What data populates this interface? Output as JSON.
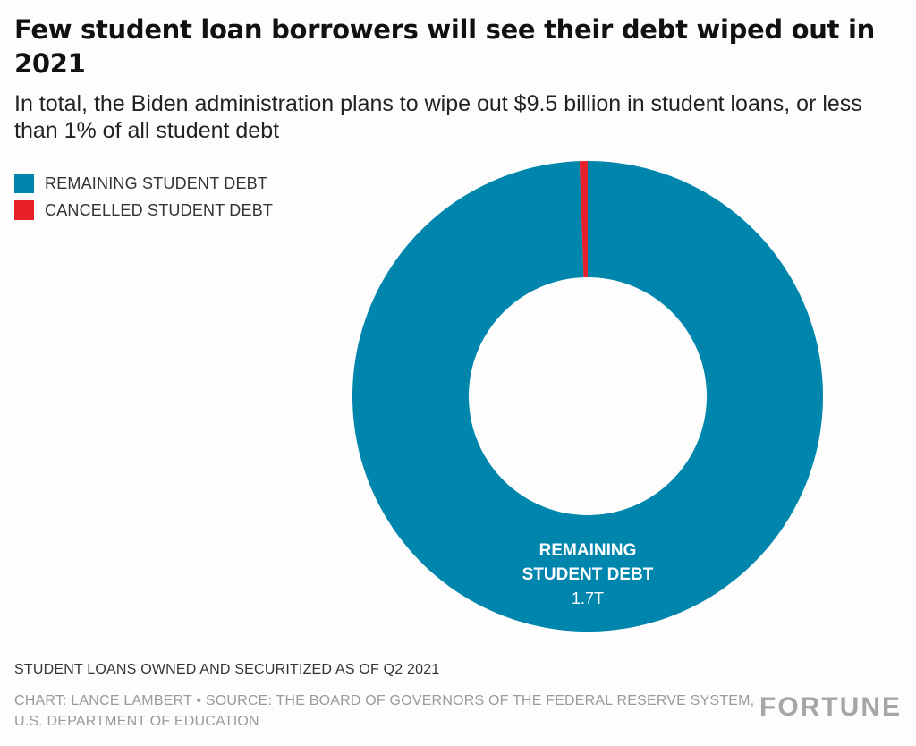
{
  "header": {
    "title": "Few student loan borrowers will see their debt wiped out in 2021",
    "subtitle": "In total, the Biden administration plans to wipe out $9.5 billion in student loans, or less than 1% of all student debt"
  },
  "chart_data": {
    "type": "pie",
    "donut": true,
    "slices": [
      {
        "label": "REMAINING STUDENT DEBT",
        "value": 1.7,
        "value_label": "1.7T",
        "color": "#0086ad",
        "data_label_lines": [
          "REMAINING",
          "STUDENT DEBT"
        ]
      },
      {
        "label": "CANCELLED STUDENT DEBT",
        "value": 0.0095,
        "value_label": "",
        "color": "#e8202a",
        "data_label_lines": []
      }
    ],
    "legend_position": "top-left"
  },
  "footer": {
    "note": "STUDENT LOANS OWNED AND SECURITIZED AS OF Q2 2021",
    "source": "CHART: LANCE LAMBERT • SOURCE: THE BOARD OF GOVERNORS OF THE FEDERAL RESERVE SYSTEM, U.S. DEPARTMENT OF EDUCATION",
    "brand": "FORTUNE"
  }
}
